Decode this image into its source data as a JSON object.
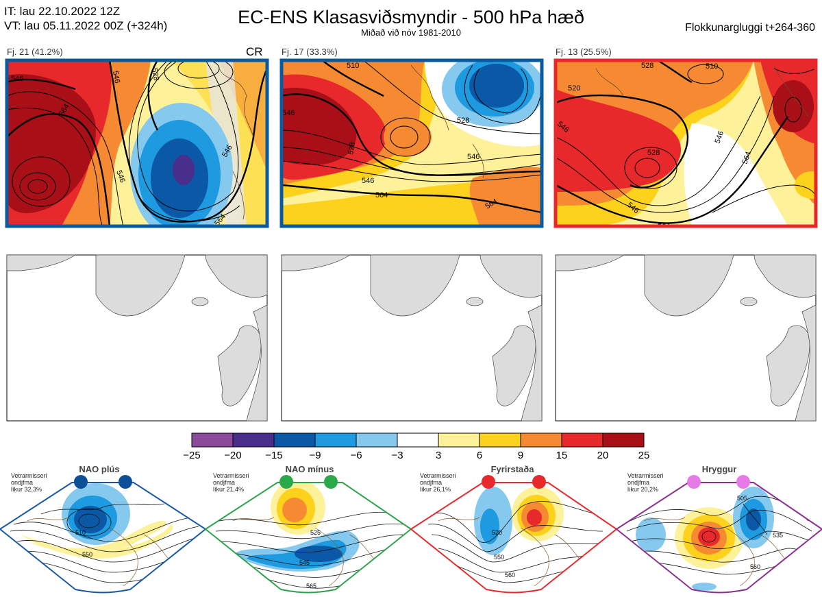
{
  "header": {
    "it_line": "IT: lau 22.10.2022 12Z",
    "vt_line": "VT: lau 05.11.2022 00Z  (+324h)",
    "title": "EC-ENS Klasasviðsmyndir - 500 hPa hæð",
    "subtitle": "Miðað við nóv 1981-2010",
    "window": "Flokkunargluggi t+264-360"
  },
  "clusters": [
    {
      "label": "Fj. 21 (41.2%)",
      "tag": "CR",
      "border": "#0a5aa0",
      "contours": [
        "546",
        "528",
        "564",
        "546",
        "546",
        "564"
      ]
    },
    {
      "label": "Fj. 17 (33.3%)",
      "tag": "",
      "border": "#0a5aa0",
      "contours": [
        "510",
        "546",
        "528",
        "546",
        "564",
        "546",
        "564"
      ]
    },
    {
      "label": "Fj. 13 (25.5%)",
      "tag": "",
      "border": "#e8292c",
      "contours": [
        "528",
        "510",
        "520",
        "546",
        "528",
        "546",
        "564",
        "564"
      ]
    }
  ],
  "colorbar": {
    "ticks": [
      "−25",
      "−20",
      "−15",
      "−9",
      "−6",
      "−3",
      "3",
      "6",
      "9",
      "15",
      "20",
      "25"
    ],
    "colors": [
      "#8a4b9c",
      "#4a2e8c",
      "#0a58a6",
      "#1e9ae0",
      "#86c9ef",
      "#ffffff",
      "#fdf19a",
      "#fdd21c",
      "#f58a32",
      "#e8292c",
      "#a80f17"
    ]
  },
  "regimes": [
    {
      "name": "NAO plús",
      "text": [
        "Vetrarmisseri",
        "ondjfma",
        "líkur 32,3%"
      ],
      "color": "#1757a4",
      "dot": "#0e4f9a",
      "contours": [
        "510",
        "550"
      ]
    },
    {
      "name": "NAO mínus",
      "text": [
        "Vetrarmisseri",
        "ondjfma",
        "líkur 21,4%"
      ],
      "color": "#2ca24a",
      "dot": "#2aa84a",
      "contours": [
        "525",
        "545",
        "565"
      ]
    },
    {
      "name": "Fyrirstaða",
      "text": [
        "Vetrarmisseri",
        "ondjfma",
        "líkur 26,1%"
      ],
      "color": "#e8292c",
      "dot": "#e8292c",
      "contours": [
        "520",
        "550",
        "560"
      ]
    },
    {
      "name": "Hryggur",
      "text": [
        "Vetrarmisseri",
        "ondjfma",
        "líkur 20,2%"
      ],
      "color": "#8a2f8f",
      "dot": "#e87ae8",
      "contours": [
        "505",
        "535",
        "560"
      ]
    }
  ]
}
